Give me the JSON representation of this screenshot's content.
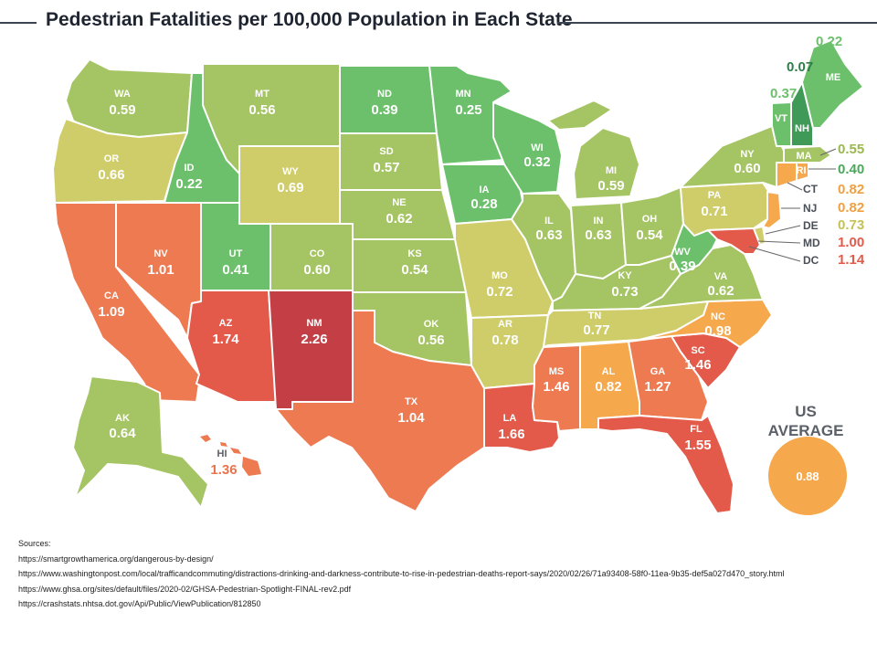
{
  "title": "Pedestrian Fatalities per 100,000 Population in Each State",
  "colors": {
    "very_low": "#3f9a58",
    "low": "#6cc06c",
    "mid_low": "#a5c463",
    "mid": "#cfcd6a",
    "mid_high": "#f6a84c",
    "high": "#ee7a52",
    "very_high": "#e35a4a",
    "extreme": "#c43e45"
  },
  "states": {
    "WA": {
      "abbr": "WA",
      "value": "0.59"
    },
    "OR": {
      "abbr": "OR",
      "value": "0.66"
    },
    "CA": {
      "abbr": "CA",
      "value": "1.09"
    },
    "NV": {
      "abbr": "NV",
      "value": "1.01"
    },
    "ID": {
      "abbr": "ID",
      "value": "0.22"
    },
    "MT": {
      "abbr": "MT",
      "value": "0.56"
    },
    "WY": {
      "abbr": "WY",
      "value": "0.69"
    },
    "UT": {
      "abbr": "UT",
      "value": "0.41"
    },
    "CO": {
      "abbr": "CO",
      "value": "0.60"
    },
    "AZ": {
      "abbr": "AZ",
      "value": "1.74"
    },
    "NM": {
      "abbr": "NM",
      "value": "2.26"
    },
    "ND": {
      "abbr": "ND",
      "value": "0.39"
    },
    "SD": {
      "abbr": "SD",
      "value": "0.57"
    },
    "NE": {
      "abbr": "NE",
      "value": "0.62"
    },
    "KS": {
      "abbr": "KS",
      "value": "0.54"
    },
    "OK": {
      "abbr": "OK",
      "value": "0.56"
    },
    "TX": {
      "abbr": "TX",
      "value": "1.04"
    },
    "MN": {
      "abbr": "MN",
      "value": "0.25"
    },
    "IA": {
      "abbr": "IA",
      "value": "0.28"
    },
    "MO": {
      "abbr": "MO",
      "value": "0.72"
    },
    "AR": {
      "abbr": "AR",
      "value": "0.78"
    },
    "LA": {
      "abbr": "LA",
      "value": "1.66"
    },
    "WI": {
      "abbr": "WI",
      "value": "0.32"
    },
    "IL": {
      "abbr": "IL",
      "value": "0.63"
    },
    "MI": {
      "abbr": "MI",
      "value": "0.59"
    },
    "IN": {
      "abbr": "IN",
      "value": "0.63"
    },
    "OH": {
      "abbr": "OH",
      "value": "0.54"
    },
    "KY": {
      "abbr": "KY",
      "value": "0.73"
    },
    "TN": {
      "abbr": "TN",
      "value": "0.77"
    },
    "MS": {
      "abbr": "MS",
      "value": "1.46"
    },
    "AL": {
      "abbr": "AL",
      "value": "0.82"
    },
    "GA": {
      "abbr": "GA",
      "value": "1.27"
    },
    "FL": {
      "abbr": "FL",
      "value": "1.55"
    },
    "SC": {
      "abbr": "SC",
      "value": "1.46"
    },
    "NC": {
      "abbr": "NC",
      "value": "0.98"
    },
    "VA": {
      "abbr": "VA",
      "value": "0.62"
    },
    "WV": {
      "abbr": "WV",
      "value": "0.39"
    },
    "PA": {
      "abbr": "PA",
      "value": "0.71"
    },
    "NY": {
      "abbr": "NY",
      "value": "0.60"
    },
    "AK": {
      "abbr": "AK",
      "value": "0.64"
    },
    "HI": {
      "abbr": "HI",
      "value": "1.36"
    },
    "ME": {
      "abbr": "ME",
      "value": "0.22"
    },
    "NH": {
      "abbr": "NH",
      "value": "0.07"
    },
    "VT": {
      "abbr": "VT",
      "value": "0.37"
    },
    "MA": {
      "abbr": "MA",
      "value": "0.55"
    },
    "RI": {
      "abbr": "RI",
      "value": "0.40"
    },
    "CT": {
      "abbr": "CT",
      "value": "0.82"
    },
    "NJ": {
      "abbr": "NJ",
      "value": "0.82"
    },
    "DE": {
      "abbr": "DE",
      "value": "0.73"
    },
    "MD": {
      "abbr": "MD",
      "value": "1.00"
    },
    "DC": {
      "abbr": "DC",
      "value": "1.14"
    }
  },
  "us_average": {
    "label_line1": "US",
    "label_line2": "AVERAGE",
    "value": "0.88"
  },
  "sources": {
    "heading": "Sources:",
    "items": [
      "https://smartgrowthamerica.org/dangerous-by-design/",
      "https://www.washingtonpost.com/local/trafficandcommuting/distractions-drinking-and-darkness-contribute-to-rise-in-pedestrian-deaths-report-says/2020/02/26/71a93408-58f0-11ea-9b35-def5a027d470_story.html",
      "https://www.ghsa.org/sites/default/files/2020-02/GHSA-Pedestrian-Spotlight-FINAL-rev2.pdf",
      "https://crashstats.nhtsa.dot.gov/Api/Public/ViewPublication/812850"
    ]
  }
}
